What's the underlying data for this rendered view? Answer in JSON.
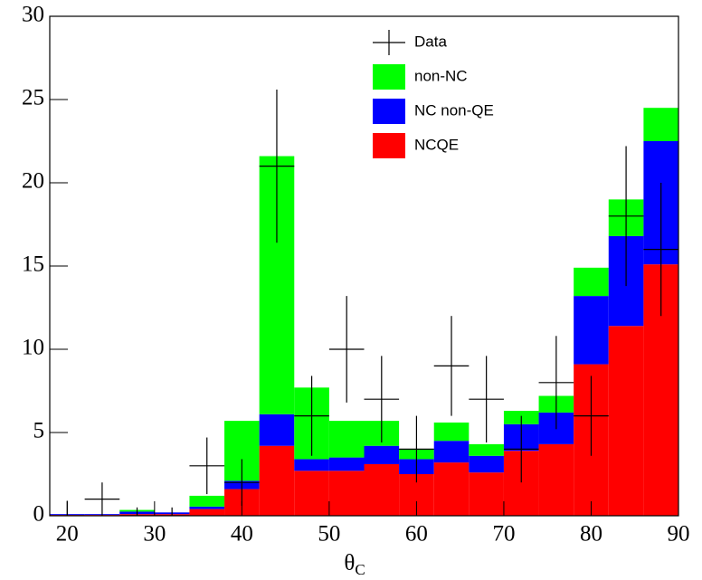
{
  "chart_data": {
    "type": "stacked_histogram",
    "x_label": {
      "symbol": "θ",
      "subscript": "C"
    },
    "bins": [
      18,
      22,
      26,
      30,
      34,
      38,
      42,
      46,
      50,
      54,
      58,
      62,
      66,
      70,
      74,
      78,
      82,
      86,
      90
    ],
    "series": [
      {
        "name": "non-NC",
        "color": "#00ff00",
        "values": [
          0,
          0,
          0.1,
          0,
          0.65,
          3.6,
          15.5,
          4.3,
          2.2,
          1.5,
          0.6,
          1.1,
          0.7,
          0.8,
          1.0,
          1.7,
          2.2,
          2.0
        ]
      },
      {
        "name": "NC non-QE",
        "color": "#0000ff",
        "values": [
          0.05,
          0.05,
          0.15,
          0.1,
          0.15,
          0.5,
          1.9,
          0.7,
          0.8,
          1.1,
          0.9,
          1.3,
          1.0,
          1.6,
          1.9,
          4.1,
          5.4,
          7.4
        ]
      },
      {
        "name": "NCQE",
        "color": "#ff0000",
        "values": [
          0.05,
          0.05,
          0.1,
          0.1,
          0.4,
          1.6,
          4.2,
          2.7,
          2.7,
          3.1,
          2.5,
          3.2,
          2.6,
          3.9,
          4.3,
          9.1,
          11.4,
          15.1
        ]
      }
    ],
    "data": {
      "name": "Data",
      "color": "#000000",
      "values": [
        0,
        1,
        0,
        0,
        3,
        2,
        21,
        6,
        10,
        7,
        4,
        9,
        7,
        4,
        8,
        6,
        18,
        16
      ],
      "errors": [
        0.9,
        1,
        0.5,
        0.5,
        1.7,
        1.4,
        4.6,
        2.4,
        3.2,
        2.6,
        2,
        3,
        2.6,
        2,
        2.8,
        2.4,
        4.2,
        4
      ]
    },
    "xlim": [
      18,
      90
    ],
    "xticks": [
      20,
      30,
      40,
      50,
      60,
      70,
      80,
      90
    ],
    "ylim": [
      0,
      30
    ],
    "yticks": [
      0,
      5,
      10,
      15,
      20,
      25,
      30
    ],
    "legend": "upper-right"
  }
}
